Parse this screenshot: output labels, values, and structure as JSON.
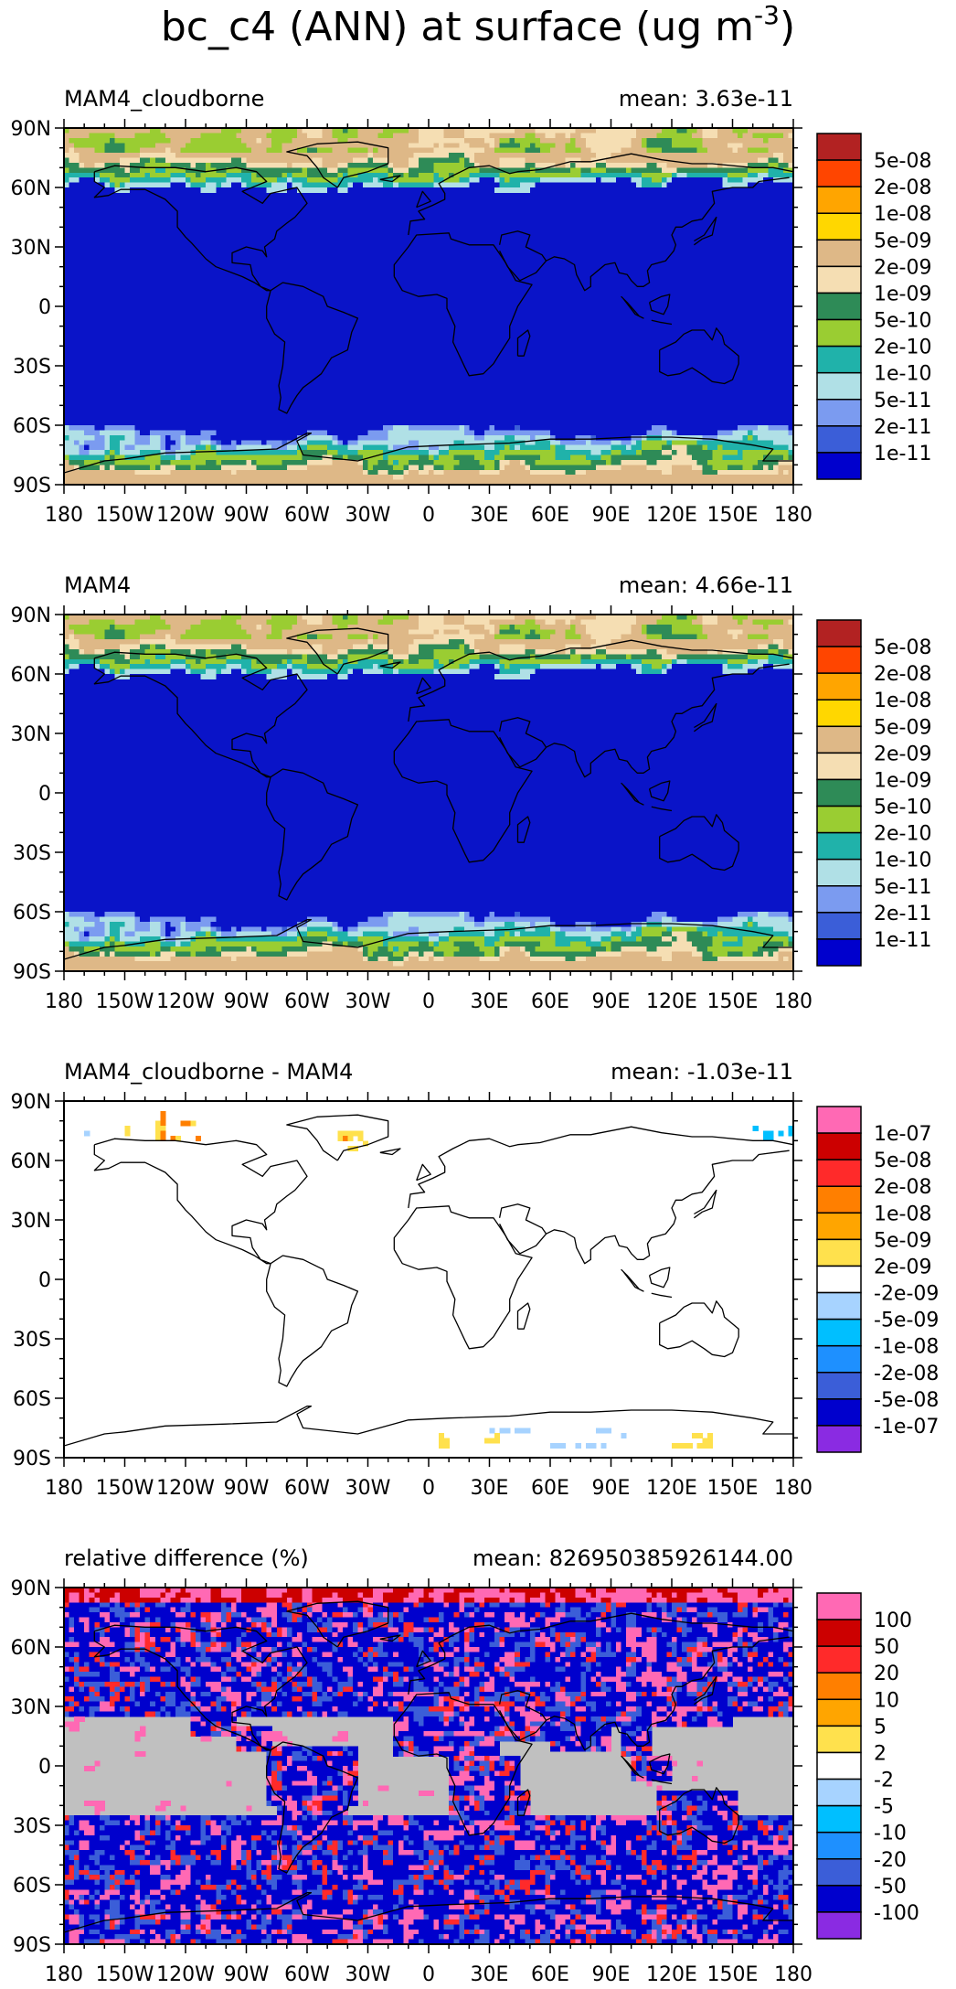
{
  "figure": {
    "title_main": "bc_c4 (ANN) at surface (ug m",
    "title_sup": "-3",
    "title_close": ")"
  },
  "chart_data": [
    {
      "type": "heatmap",
      "id": "panel1",
      "title": "MAM4_cloudborne",
      "mean_text": "mean: 3.63e-11",
      "x_ticks": [
        "180",
        "150W",
        "120W",
        "90W",
        "60W",
        "30W",
        "0",
        "30E",
        "60E",
        "90E",
        "120E",
        "150E",
        "180"
      ],
      "y_ticks": [
        "90N",
        "60N",
        "30N",
        "0",
        "30S",
        "60S",
        "90S"
      ],
      "colorbar": {
        "labels": [
          "5e-08",
          "2e-08",
          "1e-08",
          "5e-09",
          "2e-09",
          "1e-09",
          "5e-10",
          "2e-10",
          "1e-10",
          "5e-11",
          "2e-11",
          "1e-11"
        ],
        "colors": [
          "#b22222",
          "#ff4500",
          "#ffa500",
          "#ffd700",
          "#deb887",
          "#f5deb3",
          "#2e8b57",
          "#9acd32",
          "#20b2aa",
          "#b0e0e6",
          "#7b9bf0",
          "#3b5ed8",
          "#0000cd"
        ]
      },
      "field": "main",
      "background_color": "#0a14c8"
    },
    {
      "type": "heatmap",
      "id": "panel2",
      "title": "MAM4",
      "mean_text": "mean: 4.66e-11",
      "x_ticks": [
        "180",
        "150W",
        "120W",
        "90W",
        "60W",
        "30W",
        "0",
        "30E",
        "60E",
        "90E",
        "120E",
        "150E",
        "180"
      ],
      "y_ticks": [
        "90N",
        "60N",
        "30N",
        "0",
        "30S",
        "60S",
        "90S"
      ],
      "colorbar": {
        "labels": [
          "5e-08",
          "2e-08",
          "1e-08",
          "5e-09",
          "2e-09",
          "1e-09",
          "5e-10",
          "2e-10",
          "1e-10",
          "5e-11",
          "2e-11",
          "1e-11"
        ],
        "colors": [
          "#b22222",
          "#ff4500",
          "#ffa500",
          "#ffd700",
          "#deb887",
          "#f5deb3",
          "#2e8b57",
          "#9acd32",
          "#20b2aa",
          "#b0e0e6",
          "#7b9bf0",
          "#3b5ed8",
          "#0000cd"
        ]
      },
      "field": "main",
      "background_color": "#0a14c8"
    },
    {
      "type": "heatmap",
      "id": "panel3",
      "title": "MAM4_cloudborne - MAM4",
      "mean_text": "mean: -1.03e-11",
      "x_ticks": [
        "180",
        "150W",
        "120W",
        "90W",
        "60W",
        "30W",
        "0",
        "30E",
        "60E",
        "90E",
        "120E",
        "150E",
        "180"
      ],
      "y_ticks": [
        "90N",
        "60N",
        "30N",
        "0",
        "30S",
        "60S",
        "90S"
      ],
      "colorbar": {
        "labels": [
          "1e-07",
          "5e-08",
          "2e-08",
          "1e-08",
          "5e-09",
          "2e-09",
          "-2e-09",
          "-5e-09",
          "-1e-08",
          "-2e-08",
          "-5e-08",
          "-1e-07"
        ],
        "colors": [
          "#ff69b4",
          "#cc0000",
          "#ff2a2a",
          "#ff7f00",
          "#ffa500",
          "#ffe14d",
          "#ffffff",
          "#a7d3ff",
          "#00bfff",
          "#1e90ff",
          "#3b5ed8",
          "#0000cd",
          "#8a2be2"
        ]
      },
      "field": "diff",
      "background_color": "#ffffff"
    },
    {
      "type": "heatmap",
      "id": "panel4",
      "title": "relative difference (%)",
      "mean_text": "mean: 826950385926144.00",
      "x_ticks": [
        "180",
        "150W",
        "120W",
        "90W",
        "60W",
        "30W",
        "0",
        "30E",
        "60E",
        "90E",
        "120E",
        "150E",
        "180"
      ],
      "y_ticks": [
        "90N",
        "60N",
        "30N",
        "0",
        "30S",
        "60S",
        "90S"
      ],
      "colorbar": {
        "labels": [
          "100",
          "50",
          "20",
          "10",
          "5",
          "2",
          "-2",
          "-5",
          "-10",
          "-20",
          "-50",
          "-100"
        ],
        "colors": [
          "#ff69b4",
          "#cc0000",
          "#ff2a2a",
          "#ff7f00",
          "#ffa500",
          "#ffe14d",
          "#ffffff",
          "#a7d3ff",
          "#00bfff",
          "#1e90ff",
          "#3b5ed8",
          "#0000cd",
          "#8a2be2"
        ]
      },
      "field": "rel",
      "background_color": "#c0c0c0"
    }
  ]
}
